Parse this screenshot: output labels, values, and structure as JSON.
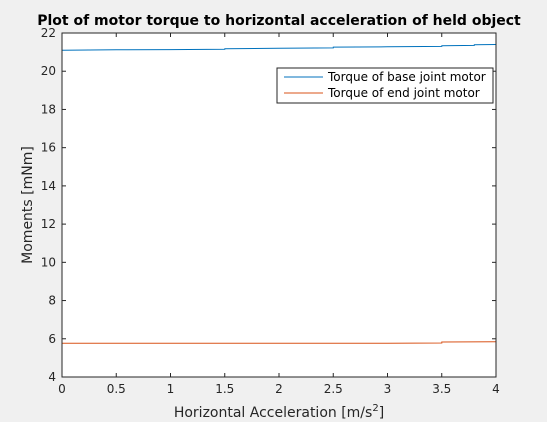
{
  "chart_data": {
    "type": "line",
    "title": "Plot of motor torque to horizontal acceleration of held object",
    "xlabel": "Horizontal Acceleration [m/s",
    "xlabel_superscript": "2",
    "xlabel_suffix": "]",
    "ylabel": "Moments [mNm]",
    "xlim": [
      0,
      4
    ],
    "ylim": [
      4,
      22
    ],
    "xticks": [
      0,
      0.5,
      1,
      1.5,
      2,
      2.5,
      3,
      3.5,
      4
    ],
    "xtick_labels": [
      "0",
      "0.5",
      "1",
      "1.5",
      "2",
      "2.5",
      "3",
      "3.5",
      "4"
    ],
    "yticks": [
      4,
      6,
      8,
      10,
      12,
      14,
      16,
      18,
      20,
      22
    ],
    "ytick_labels": [
      "4",
      "6",
      "8",
      "10",
      "12",
      "14",
      "16",
      "18",
      "20",
      "22"
    ],
    "grid": false,
    "legend_position": "top-right",
    "series": [
      {
        "name": "Torque of base joint motor",
        "color": "#0072bd",
        "x": [
          0,
          0.5,
          1,
          1.5,
          1.5,
          2,
          2.5,
          2.5,
          3,
          3.5,
          3.5,
          3.8,
          3.8,
          4
        ],
        "y": [
          21.1,
          21.12,
          21.13,
          21.15,
          21.18,
          21.2,
          21.22,
          21.26,
          21.28,
          21.3,
          21.33,
          21.35,
          21.39,
          21.4
        ]
      },
      {
        "name": "Torque of end joint motor",
        "color": "#d95319",
        "x": [
          0,
          1,
          2,
          3,
          3.5,
          3.5,
          4
        ],
        "y": [
          5.77,
          5.77,
          5.77,
          5.77,
          5.78,
          5.83,
          5.84
        ]
      }
    ]
  }
}
